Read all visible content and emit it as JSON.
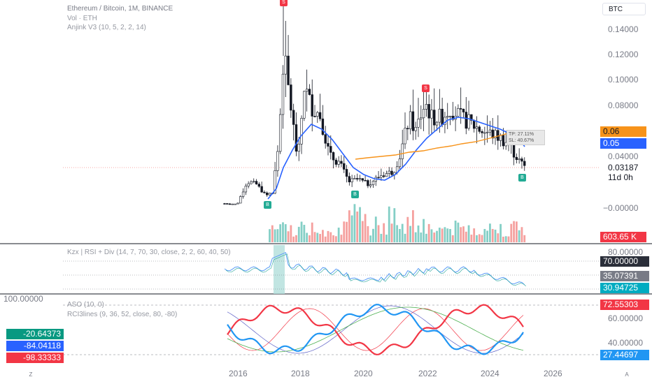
{
  "header": {
    "title": "Ethereum / Bitcoin, 1M, BINANCE",
    "vol": "Vol · ETH",
    "indicator": "Anjink V3 (10, 5, 2, 2, 14)"
  },
  "currency_button": "BTC",
  "price_axis": {
    "ticks": [
      "0.14000",
      "0.12000",
      "0.10000",
      "0.08000",
      "0.04000",
      "−0.00000"
    ],
    "tags": {
      "orange": "0.06",
      "blue": "0.05",
      "last": "0.03187",
      "countdown": "11d 0h",
      "volume": "603.65 K"
    }
  },
  "trade_box": {
    "line1": "TP: 27.11%",
    "line2": "SL: 40.67%"
  },
  "signals": {
    "sell_label": "S",
    "buy_label": "B"
  },
  "rsi_panel": {
    "label": "Kzx | RSI + Div (14, 7, 70, 30, close, 2, 2, 60, 40, 50)",
    "ticks": [
      "80.00000"
    ],
    "tags": {
      "level_high": "70.00000",
      "rsi_main": "35.07391",
      "rsi_signal": "30.94725"
    }
  },
  "aso_panel": {
    "label1": "ASO (10, 0)",
    "label2": "RCI3lines (9, 36, 52, close, 80, -80)",
    "top_left": "100.00000",
    "ticks": [
      "60.00000",
      "40.00000"
    ],
    "tags": {
      "red": "72.55303",
      "blue": "27.44697"
    },
    "left_values": [
      "-20.64373",
      "-84.04118",
      "-98.33333"
    ]
  },
  "x_axis": {
    "years": [
      "2016",
      "2018",
      "2020",
      "2022",
      "2024",
      "2026"
    ]
  },
  "bottom_buttons": {
    "left": "Z",
    "right": "A"
  },
  "colors": {
    "up": "#26a69a",
    "down": "#ef5350",
    "ma_blue": "#2962ff",
    "ma_orange": "#f7931a",
    "sell": "#f23645",
    "buy": "#22ab94",
    "green_box": "#089981",
    "blue_box": "#2962ff",
    "red_box": "#f23645",
    "rsi_line": "#5b9cf6",
    "rsi_fill": "#b2dfdb"
  },
  "chart_data": {
    "type": "candlestick",
    "title": "Ethereum / Bitcoin, 1M, BINANCE",
    "x": [
      "2016-01",
      "2016-06",
      "2017-01",
      "2017-03",
      "2017-06",
      "2017-09",
      "2018-01",
      "2018-06",
      "2019-01",
      "2019-06",
      "2020-01",
      "2020-06",
      "2021-01",
      "2021-06",
      "2021-12",
      "2022-06",
      "2023-01",
      "2023-06",
      "2024-01",
      "2024-06",
      "2024-12"
    ],
    "close": [
      0.0032,
      0.021,
      0.0098,
      0.045,
      0.115,
      0.072,
      0.096,
      0.072,
      0.035,
      0.027,
      0.018,
      0.026,
      0.035,
      0.061,
      0.082,
      0.061,
      0.071,
      0.064,
      0.055,
      0.051,
      0.032
    ],
    "ylim": [
      -0.005,
      0.15
    ],
    "y_ticks": [
      0.0,
      0.04,
      0.08,
      0.1,
      0.12,
      0.14
    ],
    "last_price": 0.03187,
    "ma_values": {
      "orange": 0.06,
      "blue": 0.05
    },
    "volume_last": "603.65 K",
    "rsi": {
      "main": 35.07391,
      "signal": 30.94725,
      "overbought": 70
    },
    "aso": {
      "bulls": 72.55303,
      "bears": 27.44697
    },
    "rci3lines": [
      -20.64373,
      -84.04118,
      -98.33333
    ]
  }
}
